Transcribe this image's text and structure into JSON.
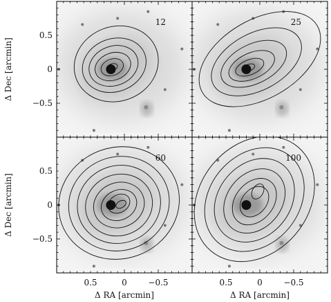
{
  "figure": {
    "panels": [
      {
        "label": "12"
      },
      {
        "label": "25"
      },
      {
        "label": "60"
      },
      {
        "label": "100"
      }
    ],
    "x_axis_label": "Δ RA  [arcmin]",
    "y_axis_label": "Δ Dec  [arcmin]",
    "x_tick_labels": [
      "0.5",
      "0",
      "−0.5"
    ],
    "y_tick_labels": [
      "0.5",
      "0",
      "−0.5"
    ]
  },
  "chart_data": {
    "type": "contour",
    "description_fields": {
      "xlim": [
        1.0,
        -1.0
      ],
      "ylim": [
        -1.0,
        1.0
      ],
      "x_ticks": [
        0.5,
        0,
        -0.5
      ],
      "y_ticks": [
        0.5,
        0,
        -0.5
      ],
      "x_unit": "arcmin",
      "y_unit": "arcmin"
    },
    "panels": [
      {
        "label": "12",
        "peak": [
          0.2,
          0.0
        ],
        "contours": [
          {
            "cx": 0.18,
            "cy": 0.03,
            "rx": 0.08,
            "ry": 0.05,
            "angle": -20
          },
          {
            "cx": 0.18,
            "cy": 0.03,
            "rx": 0.17,
            "ry": 0.12,
            "angle": -20
          },
          {
            "cx": 0.17,
            "cy": 0.04,
            "rx": 0.27,
            "ry": 0.2,
            "angle": -20
          },
          {
            "cx": 0.16,
            "cy": 0.05,
            "rx": 0.37,
            "ry": 0.29,
            "angle": -20
          },
          {
            "cx": 0.15,
            "cy": 0.06,
            "rx": 0.48,
            "ry": 0.39,
            "angle": -20
          },
          {
            "cx": 0.12,
            "cy": 0.08,
            "rx": 0.63,
            "ry": 0.55,
            "angle": -20
          }
        ]
      },
      {
        "label": "25",
        "peak": [
          0.2,
          0.0
        ],
        "contours": [
          {
            "cx": 0.17,
            "cy": 0.02,
            "rx": 0.1,
            "ry": 0.05,
            "angle": -22
          },
          {
            "cx": 0.15,
            "cy": 0.03,
            "rx": 0.22,
            "ry": 0.11,
            "angle": -22
          },
          {
            "cx": 0.12,
            "cy": 0.05,
            "rx": 0.36,
            "ry": 0.19,
            "angle": -24
          },
          {
            "cx": 0.09,
            "cy": 0.08,
            "rx": 0.52,
            "ry": 0.29,
            "angle": -26
          },
          {
            "cx": 0.05,
            "cy": 0.11,
            "rx": 0.72,
            "ry": 0.42,
            "angle": -28
          },
          {
            "cx": 0.0,
            "cy": 0.15,
            "rx": 0.98,
            "ry": 0.58,
            "angle": -30
          }
        ]
      },
      {
        "label": "60",
        "peak": [
          0.2,
          0.0
        ],
        "contours": [
          {
            "cx": 0.05,
            "cy": 0.01,
            "rx": 0.08,
            "ry": 0.05,
            "angle": -30
          },
          {
            "cx": 0.08,
            "cy": 0.02,
            "rx": 0.17,
            "ry": 0.13,
            "angle": -30
          },
          {
            "cx": 0.08,
            "cy": 0.0,
            "rx": 0.27,
            "ry": 0.22,
            "angle": -25
          },
          {
            "cx": 0.08,
            "cy": 0.0,
            "rx": 0.38,
            "ry": 0.33,
            "angle": -20
          },
          {
            "cx": 0.08,
            "cy": 0.0,
            "rx": 0.5,
            "ry": 0.45,
            "angle": -20
          },
          {
            "cx": 0.08,
            "cy": 0.01,
            "rx": 0.62,
            "ry": 0.57,
            "angle": -20
          },
          {
            "cx": 0.08,
            "cy": 0.02,
            "rx": 0.75,
            "ry": 0.69,
            "angle": -20
          },
          {
            "cx": 0.08,
            "cy": 0.03,
            "rx": 0.9,
            "ry": 0.82,
            "angle": -20
          }
        ]
      },
      {
        "label": "100",
        "peak": [
          0.2,
          0.0
        ],
        "contours": [
          {
            "cx": 0.03,
            "cy": 0.2,
            "rx": 0.12,
            "ry": 0.08,
            "angle": -60
          },
          {
            "cx": 0.08,
            "cy": 0.05,
            "rx": 0.25,
            "ry": 0.18,
            "angle": -50
          },
          {
            "cx": 0.08,
            "cy": 0.05,
            "rx": 0.38,
            "ry": 0.28,
            "angle": -50
          },
          {
            "cx": 0.08,
            "cy": 0.06,
            "rx": 0.52,
            "ry": 0.4,
            "angle": -50
          },
          {
            "cx": 0.08,
            "cy": 0.07,
            "rx": 0.67,
            "ry": 0.53,
            "angle": -50
          },
          {
            "cx": 0.08,
            "cy": 0.08,
            "rx": 0.83,
            "ry": 0.66,
            "angle": -50
          },
          {
            "cx": 0.08,
            "cy": 0.09,
            "rx": 1.0,
            "ry": 0.8,
            "angle": -50
          }
        ]
      }
    ]
  }
}
